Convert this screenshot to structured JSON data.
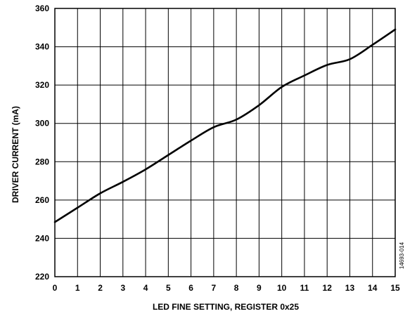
{
  "chart_data": {
    "type": "line",
    "xlabel": "LED FINE SETTING, REGISTER 0x25",
    "ylabel": "DRIVER CURRENT (mA)",
    "xlim": [
      0,
      15
    ],
    "ylim": [
      220,
      360
    ],
    "x_ticks": [
      0,
      1,
      2,
      3,
      4,
      5,
      6,
      7,
      8,
      9,
      10,
      11,
      12,
      13,
      14,
      15
    ],
    "y_ticks": [
      220,
      240,
      260,
      280,
      300,
      320,
      340,
      360
    ],
    "grid": true,
    "series": [
      {
        "color": "#000000",
        "x": [
          0,
          1,
          2,
          3,
          4,
          5,
          6,
          7,
          8,
          9,
          10,
          11,
          12,
          13,
          14,
          15
        ],
        "y": [
          248.5,
          256,
          263.5,
          269.5,
          276,
          283.5,
          291,
          298,
          302,
          309.5,
          319,
          325,
          330.5,
          333.5,
          341,
          349
        ]
      }
    ]
  },
  "figure_id": "14693-014"
}
